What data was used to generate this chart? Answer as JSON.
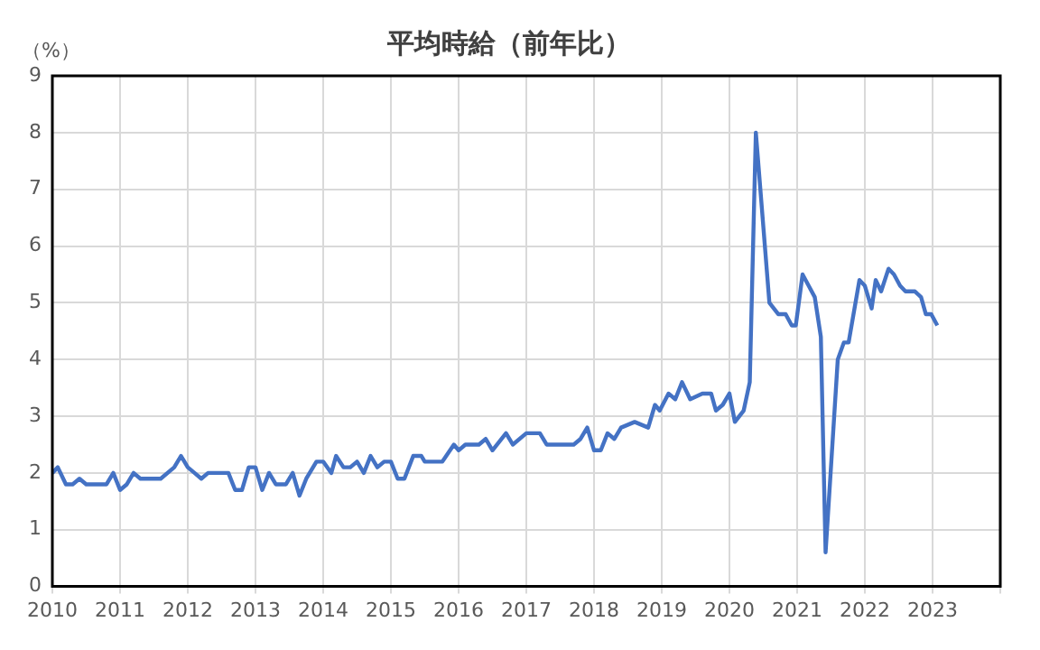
{
  "chart_data": {
    "type": "line",
    "title": "平均時給（前年比）",
    "ylabel": "（%）",
    "x": [
      2010.0,
      2010.08,
      2010.2,
      2010.3,
      2010.4,
      2010.5,
      2010.8,
      2010.9,
      2011.0,
      2011.1,
      2011.2,
      2011.3,
      2011.6,
      2011.8,
      2011.9,
      2012.0,
      2012.1,
      2012.2,
      2012.3,
      2012.6,
      2012.7,
      2012.8,
      2012.9,
      2013.0,
      2013.1,
      2013.2,
      2013.3,
      2013.45,
      2013.55,
      2013.65,
      2013.75,
      2013.9,
      2014.0,
      2014.12,
      2014.19,
      2014.3,
      2014.4,
      2014.5,
      2014.6,
      2014.7,
      2014.8,
      2014.9,
      2015.0,
      2015.1,
      2015.2,
      2015.33,
      2015.45,
      2015.5,
      2015.76,
      2015.93,
      2016.0,
      2016.1,
      2016.3,
      2016.4,
      2016.5,
      2016.7,
      2016.8,
      2017.0,
      2017.2,
      2017.3,
      2017.5,
      2017.7,
      2017.8,
      2017.9,
      2018.0,
      2018.1,
      2018.2,
      2018.3,
      2018.4,
      2018.6,
      2018.8,
      2018.9,
      2018.97,
      2019.1,
      2019.2,
      2019.3,
      2019.42,
      2019.6,
      2019.73,
      2019.8,
      2019.9,
      2020.0,
      2020.08,
      2020.21,
      2020.3,
      2020.39,
      2020.59,
      2020.72,
      2020.83,
      2020.92,
      2020.98,
      2021.08,
      2021.17,
      2021.26,
      2021.35,
      2021.42,
      2021.6,
      2021.69,
      2021.76,
      2021.92,
      2022.0,
      2022.1,
      2022.16,
      2022.24,
      2022.35,
      2022.43,
      2022.52,
      2022.6,
      2022.74,
      2022.83,
      2022.9,
      2022.98,
      2023.07
    ],
    "series": [
      {
        "color": "#4472c4",
        "values": [
          2.0,
          2.1,
          1.8,
          1.8,
          1.9,
          1.8,
          1.8,
          2.0,
          1.7,
          1.8,
          2.0,
          1.9,
          1.9,
          2.1,
          2.3,
          2.1,
          2.0,
          1.9,
          2.0,
          2.0,
          1.7,
          1.7,
          2.1,
          2.1,
          1.7,
          2.0,
          1.8,
          1.8,
          2.0,
          1.6,
          1.9,
          2.2,
          2.2,
          2.0,
          2.3,
          2.1,
          2.1,
          2.2,
          2.0,
          2.3,
          2.1,
          2.2,
          2.2,
          1.9,
          1.9,
          2.3,
          2.3,
          2.2,
          2.2,
          2.5,
          2.4,
          2.5,
          2.5,
          2.6,
          2.4,
          2.7,
          2.5,
          2.7,
          2.7,
          2.5,
          2.5,
          2.5,
          2.6,
          2.8,
          2.4,
          2.4,
          2.7,
          2.6,
          2.8,
          2.9,
          2.8,
          3.2,
          3.1,
          3.4,
          3.3,
          3.6,
          3.3,
          3.4,
          3.4,
          3.1,
          3.2,
          3.4,
          2.9,
          3.1,
          3.6,
          8.0,
          5.0,
          4.8,
          4.8,
          4.6,
          4.6,
          5.5,
          5.3,
          5.1,
          4.4,
          0.6,
          4.0,
          4.3,
          4.3,
          5.4,
          5.3,
          4.9,
          5.4,
          5.2,
          5.6,
          5.5,
          5.3,
          5.2,
          5.2,
          5.1,
          4.8,
          4.8,
          4.6
        ]
      }
    ],
    "xlim": [
      2010,
      2024
    ],
    "xticks": [
      2010,
      2011,
      2012,
      2013,
      2014,
      2015,
      2016,
      2017,
      2018,
      2019,
      2020,
      2021,
      2022,
      2023,
      {
        "value": 2024,
        "label": null
      }
    ],
    "ylim": [
      0,
      9
    ],
    "yticks": [
      0,
      1,
      2,
      3,
      4,
      5,
      6,
      7,
      8,
      9
    ],
    "grid": true,
    "legend": false,
    "marker": "none",
    "line_style": "solid"
  }
}
